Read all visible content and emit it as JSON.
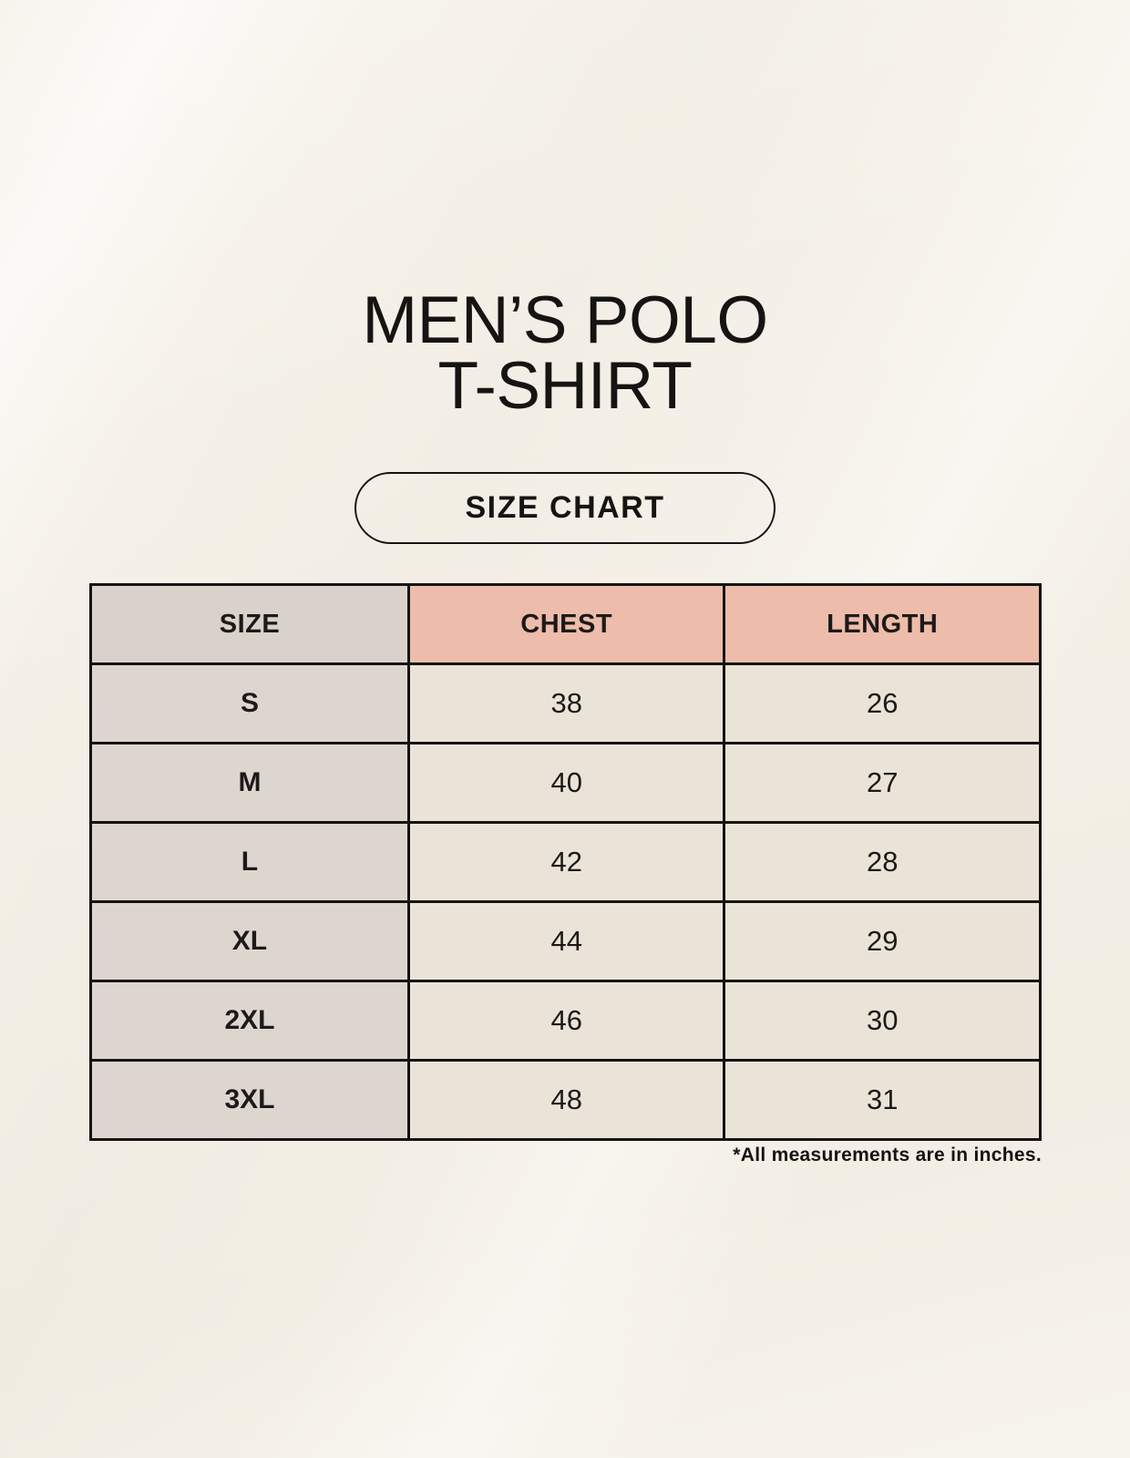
{
  "header": {
    "title_line1": "MEN’S POLO",
    "title_line2": "T-SHIRT",
    "badge_label": "SIZE CHART"
  },
  "footnote": {
    "text": "*All measurements are in inches."
  },
  "colors": {
    "page_background": "#f5f1e8",
    "size_header_bg": "#d8d2cb",
    "measure_header_bg": "#eebcab",
    "size_cell_bg": "#ddd6cf",
    "value_cell_bg": "#eae4d8",
    "table_border": "#161412",
    "text": "#161412"
  },
  "chart_data": {
    "type": "table",
    "title": "MEN’S POLO T-SHIRT SIZE CHART",
    "columns": [
      "SIZE",
      "CHEST",
      "LENGTH"
    ],
    "units": "inches",
    "rows": [
      {
        "size": "S",
        "chest": 38,
        "length": 26
      },
      {
        "size": "M",
        "chest": 40,
        "length": 27
      },
      {
        "size": "L",
        "chest": 42,
        "length": 28
      },
      {
        "size": "XL",
        "chest": 44,
        "length": 29
      },
      {
        "size": "2XL",
        "chest": 46,
        "length": 30
      },
      {
        "size": "3XL",
        "chest": 48,
        "length": 31
      }
    ]
  }
}
